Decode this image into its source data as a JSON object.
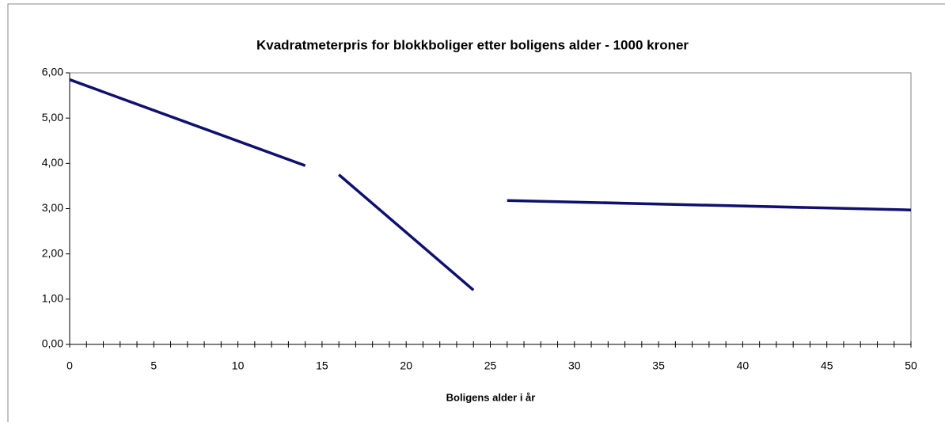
{
  "chart_data": {
    "type": "line",
    "title": "Kvadratmeterpris for blokkboliger etter boligens alder - 1000 kroner",
    "xlabel": "Boligens alder i år",
    "x": [
      0,
      14,
      15,
      16,
      24,
      25,
      26,
      50
    ],
    "values": [
      5.85,
      3.95,
      null,
      3.75,
      1.2,
      null,
      3.18,
      2.97
    ],
    "color": "#10106e",
    "xlim": [
      0,
      50
    ],
    "xticks": [
      0,
      5,
      10,
      15,
      20,
      25,
      30,
      35,
      40,
      45,
      50
    ],
    "xminorticks": [
      0,
      1,
      2,
      3,
      4,
      5,
      6,
      7,
      8,
      9,
      10,
      11,
      12,
      13,
      14,
      15,
      16,
      17,
      18,
      19,
      20,
      21,
      22,
      23,
      24,
      25,
      26,
      27,
      28,
      29,
      30,
      31,
      32,
      33,
      34,
      35,
      36,
      37,
      38,
      39,
      40,
      41,
      42,
      43,
      44,
      45,
      46,
      47,
      48,
      49,
      50
    ],
    "ylim": [
      0,
      6
    ],
    "yticks": [
      {
        "value": 0,
        "label": "0,00"
      },
      {
        "value": 1,
        "label": "1,00"
      },
      {
        "value": 2,
        "label": "2,00"
      },
      {
        "value": 3,
        "label": "3,00"
      },
      {
        "value": 4,
        "label": "4,00"
      },
      {
        "value": 5,
        "label": "5,00"
      },
      {
        "value": 6,
        "label": "6,00"
      }
    ],
    "grid": false
  }
}
